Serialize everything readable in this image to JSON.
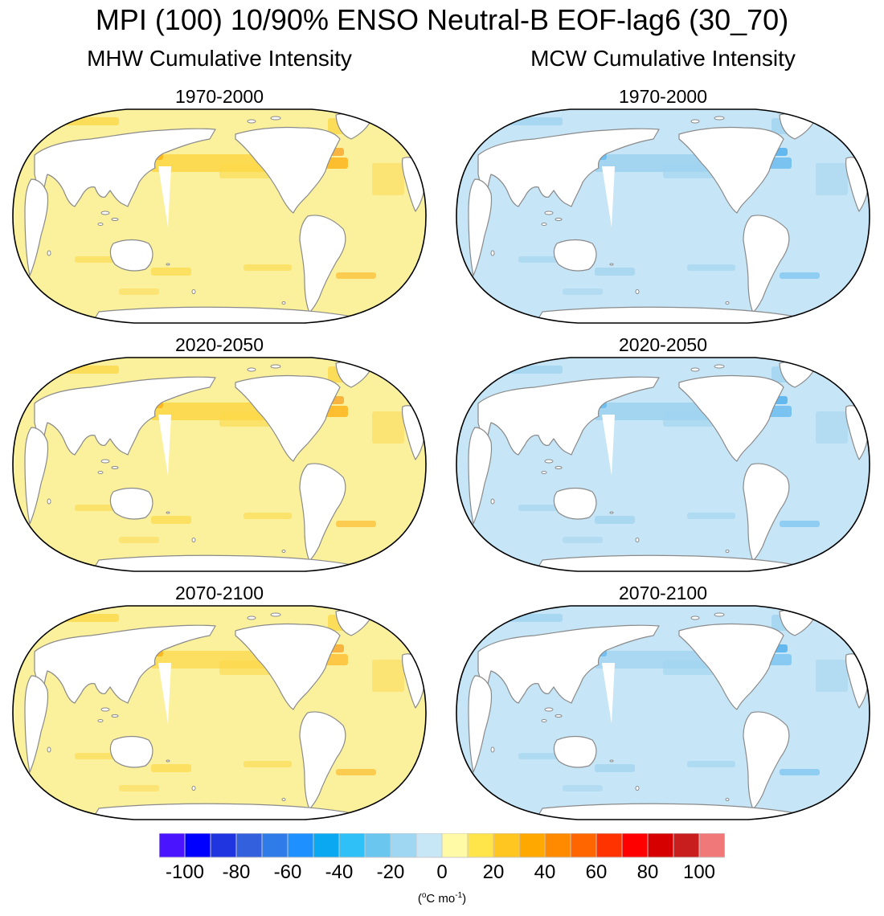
{
  "title": "MPI (100) 10/90% ENSO Neutral-B EOF-lag6 (30_70)",
  "chart_data": [
    {
      "type": "heatmap",
      "variable": "MHW Cumulative Intensity",
      "column_title": "MHW Cumulative Intensity",
      "panels": [
        {
          "period": "1970-2000",
          "typical_value": 5,
          "max_value": 40
        },
        {
          "period": "2020-2050",
          "typical_value": 5,
          "max_value": 40
        },
        {
          "period": "2070-2100",
          "typical_value": 5,
          "max_value": 30
        }
      ]
    },
    {
      "type": "heatmap",
      "variable": "MCW Cumulative Intensity",
      "column_title": "MCW Cumulative Intensity",
      "panels": [
        {
          "period": "1970-2000",
          "typical_value": -5,
          "max_value": -40
        },
        {
          "period": "2020-2050",
          "typical_value": -5,
          "max_value": -40
        },
        {
          "period": "2070-2100",
          "typical_value": -5,
          "max_value": -30
        }
      ]
    }
  ],
  "colorbar": {
    "levels": [
      -100,
      -90,
      -80,
      -70,
      -60,
      -50,
      -40,
      -30,
      -20,
      -10,
      0,
      10,
      20,
      30,
      40,
      50,
      60,
      70,
      80,
      90,
      100
    ],
    "colors": [
      "#4a14ff",
      "#0000ff",
      "#2035e0",
      "#3360dc",
      "#2f7be8",
      "#1e90ff",
      "#0aa8f0",
      "#2ec0f6",
      "#6ac6ef",
      "#9fd6f2",
      "#c7e6f6",
      "#fffaa6",
      "#ffe44a",
      "#ffc520",
      "#ffa800",
      "#ff8a00",
      "#ff6600",
      "#ff3300",
      "#ff0000",
      "#d60000",
      "#c81e1e",
      "#f07878"
    ],
    "tick_labels": [
      "-100",
      "-80",
      "-60",
      "-40",
      "-20",
      "0",
      "20",
      "40",
      "60",
      "80",
      "100"
    ],
    "units_main": "(",
    "units_sup1": "o",
    "units_mid": "C mo",
    "units_sup2": "-1",
    "units_end": ")"
  },
  "palette": {
    "mhw_base": "#fbf19c",
    "mhw_mid": "#fcd84a",
    "mhw_high": "#fcb41c",
    "mhw_peak": "#f69a17",
    "mcw_base": "#c6e5f6",
    "mcw_mid": "#a0d3f0",
    "mcw_high": "#6cbdf0",
    "mcw_peak": "#39a5ee",
    "coast": "#8a8a8a"
  }
}
